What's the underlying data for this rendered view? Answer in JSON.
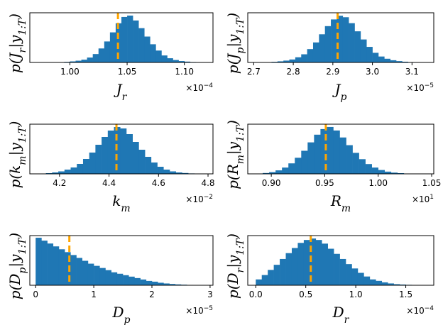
{
  "figure": {
    "bar_color": "#1f77b4",
    "line_color": "#ffa500",
    "frame_color": "#000000"
  },
  "chart_data": [
    {
      "type": "bar",
      "title": "",
      "xlabel": "J_r",
      "xlabel_base": "J",
      "xlabel_sub": "r",
      "ylabel": "p(J_r | y_{1:T})",
      "ylabel_base": "p(J",
      "ylabel_sub": "r",
      "ylabel_cond": "|y",
      "ylabel_cond_sub": "1:T",
      "ylabel_tail": ")",
      "offset_text": "×10",
      "offset_exp": "−4",
      "xlim": [
        0.965,
        1.125
      ],
      "ticks": [
        1.0,
        1.05,
        1.1
      ],
      "tick_labels": [
        "1.00",
        "1.05",
        "1.10"
      ],
      "bins": [
        0.98,
        0.985,
        0.99,
        0.995,
        1.0,
        1.005,
        1.01,
        1.015,
        1.02,
        1.025,
        1.03,
        1.035,
        1.04,
        1.045,
        1.05,
        1.055,
        1.06,
        1.065,
        1.07,
        1.075,
        1.08,
        1.085,
        1.09,
        1.095,
        1.1,
        1.105,
        1.11,
        1.115
      ],
      "values": [
        0.2,
        0.3,
        0.5,
        0.8,
        1.5,
        2.5,
        4,
        7,
        12,
        20,
        30,
        43,
        56,
        65,
        67,
        60,
        49,
        37,
        26,
        17,
        10,
        6,
        3.5,
        2,
        1.2,
        0.6,
        0.3,
        0.2
      ],
      "ylim": [
        0,
        71
      ],
      "mean": 1.042
    },
    {
      "type": "bar",
      "title": "",
      "xlabel": "J_p",
      "xlabel_base": "J",
      "xlabel_sub": "p",
      "ylabel": "p(J_p | y_{1:T})",
      "ylabel_base": "p(J",
      "ylabel_sub": "p",
      "ylabel_cond": "|y",
      "ylabel_cond_sub": "1:T",
      "ylabel_tail": ")",
      "offset_text": "×10",
      "offset_exp": "−5",
      "xlim": [
        2.685,
        3.155
      ],
      "ticks": [
        2.7,
        2.8,
        2.9,
        3.0,
        3.1
      ],
      "tick_labels": [
        "2.7",
        "2.8",
        "2.9",
        "3.0",
        "3.1"
      ],
      "bins": [
        2.7,
        2.715,
        2.73,
        2.745,
        2.76,
        2.775,
        2.79,
        2.805,
        2.82,
        2.835,
        2.85,
        2.865,
        2.88,
        2.895,
        2.91,
        2.925,
        2.94,
        2.955,
        2.97,
        2.985,
        3.0,
        3.015,
        3.03,
        3.045,
        3.06,
        3.075,
        3.09,
        3.105,
        3.12
      ],
      "values": [
        0.2,
        0.3,
        0.4,
        0.8,
        1.5,
        2.5,
        4,
        7,
        11,
        18,
        27,
        38,
        49,
        58,
        63,
        61,
        53,
        42,
        31,
        21,
        13,
        8,
        5,
        3,
        1.8,
        1,
        0.5,
        0.3,
        0.2
      ],
      "ylim": [
        0,
        67
      ],
      "mean": 2.912
    },
    {
      "type": "bar",
      "title": "",
      "xlabel": "k_m",
      "xlabel_base": "k",
      "xlabel_sub": "m",
      "ylabel": "p(k_m | y_{1:T})",
      "ylabel_base": "p(k",
      "ylabel_sub": "m",
      "ylabel_cond": "|y",
      "ylabel_cond_sub": "1:T",
      "ylabel_tail": ")",
      "offset_text": "×10",
      "offset_exp": "−2",
      "xlim": [
        4.08,
        4.82
      ],
      "ticks": [
        4.2,
        4.4,
        4.6,
        4.8
      ],
      "tick_labels": [
        "4.2",
        "4.4",
        "4.6",
        "4.8"
      ],
      "bins": [
        4.12,
        4.145,
        4.17,
        4.195,
        4.22,
        4.245,
        4.27,
        4.295,
        4.32,
        4.345,
        4.37,
        4.395,
        4.42,
        4.445,
        4.47,
        4.495,
        4.52,
        4.545,
        4.57,
        4.595,
        4.62,
        4.645,
        4.67,
        4.695,
        4.72,
        4.745,
        4.77
      ],
      "values": [
        0.5,
        1,
        2,
        3.5,
        6,
        9,
        14,
        21,
        30,
        41,
        52,
        61,
        66,
        64,
        56,
        45,
        34,
        24,
        16,
        10,
        6,
        3.5,
        2,
        1.2,
        0.6,
        0.3,
        0.2
      ],
      "ylim": [
        0,
        70
      ],
      "mean": 4.43
    },
    {
      "type": "bar",
      "title": "",
      "xlabel": "R_m",
      "xlabel_base": "R",
      "xlabel_sub": "m",
      "ylabel": "p(R_m | y_{1:T})",
      "ylabel_base": "p(R",
      "ylabel_sub": "m",
      "ylabel_cond": "|y",
      "ylabel_cond_sub": "1:T",
      "ylabel_tail": ")",
      "offset_text": "×10",
      "offset_exp": "1",
      "xlim": [
        0.878,
        1.052
      ],
      "ticks": [
        0.9,
        0.95,
        1.0,
        1.05
      ],
      "tick_labels": [
        "0.90",
        "0.95",
        "1.00",
        "1.05"
      ],
      "bins": [
        0.886,
        0.892,
        0.898,
        0.904,
        0.91,
        0.916,
        0.922,
        0.928,
        0.934,
        0.94,
        0.946,
        0.952,
        0.958,
        0.964,
        0.97,
        0.976,
        0.982,
        0.988,
        0.994,
        1.0,
        1.006,
        1.012,
        1.018,
        1.024,
        1.03
      ],
      "values": [
        0.5,
        1.2,
        2.5,
        5,
        9,
        15,
        23,
        33,
        45,
        56,
        64,
        67,
        62,
        52,
        41,
        30,
        21,
        14,
        9,
        5.5,
        3.2,
        1.8,
        1,
        0.5,
        0.3
      ],
      "ylim": [
        0,
        71
      ],
      "mean": 0.951
    },
    {
      "type": "bar",
      "title": "",
      "xlabel": "D_p",
      "xlabel_base": "D",
      "xlabel_sub": "p",
      "ylabel": "p(D_p | y_{1:T})",
      "ylabel_base": "p(D",
      "ylabel_sub": "p",
      "ylabel_cond": "|y",
      "ylabel_cond_sub": "1:T",
      "ylabel_tail": ")",
      "offset_text": "×10",
      "offset_exp": "−5",
      "xlim": [
        -0.1,
        3.05
      ],
      "ticks": [
        0,
        1,
        2,
        3
      ],
      "tick_labels": [
        "0",
        "1",
        "2",
        "3"
      ],
      "bins": [
        0.0,
        0.1,
        0.2,
        0.3,
        0.4,
        0.5,
        0.6,
        0.7,
        0.8,
        0.9,
        1.0,
        1.1,
        1.2,
        1.3,
        1.4,
        1.5,
        1.6,
        1.7,
        1.8,
        1.9,
        2.0,
        2.1,
        2.2,
        2.3,
        2.4,
        2.5,
        2.6,
        2.7,
        2.8,
        2.9
      ],
      "values": [
        66,
        62,
        58,
        54,
        50,
        46,
        42,
        38,
        34,
        30,
        27,
        24,
        21,
        18,
        16,
        14,
        12,
        10,
        8,
        6,
        5,
        3.5,
        2.5,
        1.8,
        1.2,
        0.8,
        0.5,
        0.3,
        0.2,
        0.1
      ],
      "ylim": [
        0,
        69
      ],
      "mean": 0.58
    },
    {
      "type": "bar",
      "title": "",
      "xlabel": "D_r",
      "xlabel_base": "D",
      "xlabel_sub": "r",
      "ylabel": "p(D_r | y_{1:T})",
      "ylabel_base": "p(D",
      "ylabel_sub": "r",
      "ylabel_cond": "|y",
      "ylabel_cond_sub": "1:T",
      "ylabel_tail": ")",
      "offset_text": "×10",
      "offset_exp": "−4",
      "xlim": [
        -0.08,
        1.78
      ],
      "ticks": [
        0.0,
        0.5,
        1.0,
        1.5
      ],
      "tick_labels": [
        "0.0",
        "0.5",
        "1.0",
        "1.5"
      ],
      "bins": [
        0.0,
        0.06,
        0.12,
        0.18,
        0.24,
        0.3,
        0.36,
        0.42,
        0.48,
        0.54,
        0.6,
        0.66,
        0.72,
        0.78,
        0.84,
        0.9,
        0.96,
        1.02,
        1.08,
        1.14,
        1.2,
        1.26,
        1.32,
        1.38,
        1.44,
        1.5,
        1.56,
        1.62,
        1.68
      ],
      "values": [
        8,
        14,
        21,
        28,
        36,
        44,
        51,
        58,
        62,
        64,
        62,
        57,
        50,
        43,
        36,
        29,
        23,
        17,
        12,
        8,
        6,
        4,
        2.5,
        1.5,
        1,
        0.6,
        0.3,
        0.2,
        0.1
      ],
      "ylim": [
        0,
        68
      ],
      "mean": 0.55
    }
  ]
}
